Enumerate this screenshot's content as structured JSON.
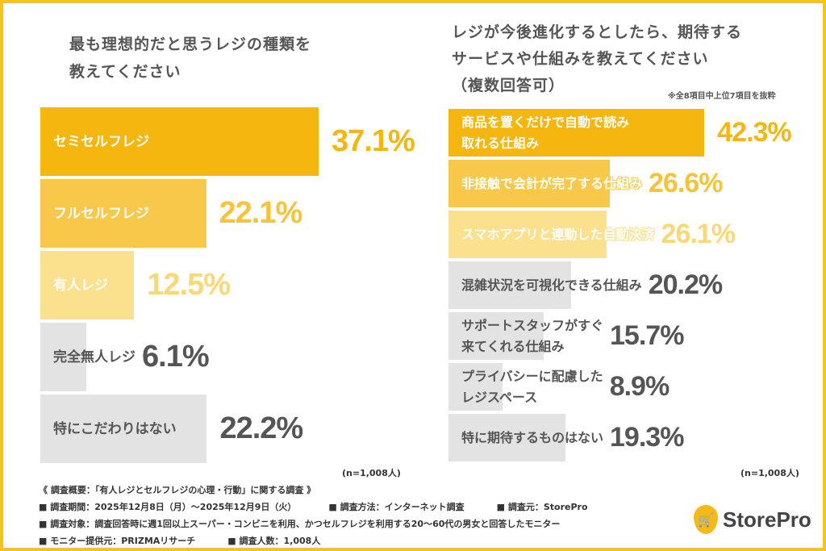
{
  "chart_data": [
    {
      "type": "bar",
      "orientation": "horizontal",
      "title": "最も理想的だと思うレジの種類を\n教えてください",
      "categories": [
        "セミセルフレジ",
        "フルセルフレジ",
        "有人レジ",
        "完全無人レジ",
        "特にこだわりはない"
      ],
      "values": [
        37.1,
        22.1,
        12.5,
        6.1,
        22.2
      ],
      "unit": "%",
      "sample": "(n=1,008人)",
      "colors": [
        "#f5b60f",
        "#f7c84a",
        "#fbe08e",
        "#e3e3e3",
        "#e3e3e3"
      ]
    },
    {
      "type": "bar",
      "orientation": "horizontal",
      "title": "レジが今後進化するとしたら、期待する\nサービスや仕組みを教えてください\n（複数回答可）",
      "note": "※全8項目中上位7項目を抜粋",
      "categories": [
        "商品を置くだけで自動で読み\n取れる仕組み",
        "非接触で会計が完了する仕組み",
        "スマホアプリと連動した自動決済",
        "混雑状況を可視化できる仕組み",
        "サポートスタッフがすぐ\n来てくれる仕組み",
        "プライバシーに配慮した\nレジスペース",
        "特に期待するものはない"
      ],
      "values": [
        42.3,
        26.6,
        26.1,
        20.2,
        15.7,
        8.9,
        19.3
      ],
      "unit": "%",
      "sample": "(n=1,008人)",
      "colors": [
        "#f5b60f",
        "#f7c84a",
        "#fbe08e",
        "#e3e3e3",
        "#e3e3e3",
        "#e3e3e3",
        "#e3e3e3"
      ]
    }
  ],
  "footer": {
    "summary": "《 調査概要：「有人レジとセルフレジの心理・行動」に関する調査 》",
    "period": "■ 調査期間：2025年12月8日（月）～2025年12月9日（火）",
    "method": "■ 調査方法：インターネット調査",
    "source": "■ 調査元：StorePro",
    "target": "■ 調査対象：調査回答時に週1回以上スーパー・コンビニを利用、かつセルフレジを利用する20～60代の男女と回答したモニター",
    "provider": "■ モニター提供元：PRIZMAリサーチ",
    "count": "■ 調査人数：1,008人"
  },
  "logo": {
    "text": "StorePro",
    "icon": "shopping-cart-icon"
  }
}
